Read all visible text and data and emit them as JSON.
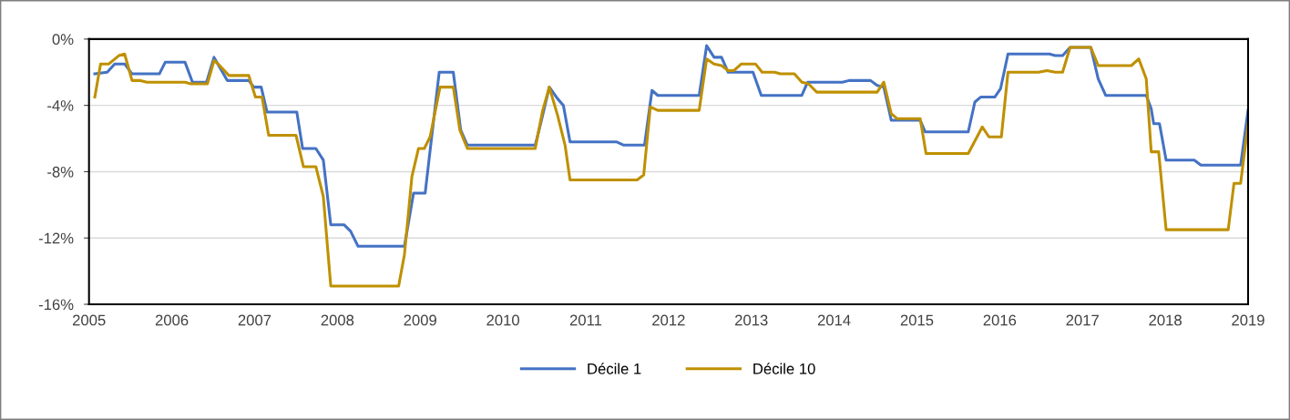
{
  "chart_data": {
    "type": "line",
    "xlim": [
      2005,
      2019
    ],
    "xticks": [
      2005,
      2006,
      2007,
      2008,
      2009,
      2010,
      2011,
      2012,
      2013,
      2014,
      2015,
      2016,
      2017,
      2018,
      2019
    ],
    "ylim": [
      -16,
      0
    ],
    "yticks": [
      {
        "value": -16,
        "label": "-16%"
      },
      {
        "value": -12,
        "label": "-12%"
      },
      {
        "value": -8,
        "label": "-8%"
      },
      {
        "value": -4,
        "label": "-4%"
      },
      {
        "value": 0,
        "label": "0%"
      }
    ],
    "grid": "y",
    "legend": "bottom",
    "marker": "none",
    "line_style": "solid",
    "series": [
      {
        "name": "Décile 1",
        "color": "#4472c4",
        "x": [
          2005.07,
          2005.22,
          2005.31,
          2005.43,
          2005.52,
          2005.85,
          2005.92,
          2006.16,
          2006.25,
          2006.42,
          2006.51,
          2006.67,
          2006.93,
          2006.99,
          2007.08,
          2007.15,
          2007.51,
          2007.58,
          2007.74,
          2007.83,
          2007.92,
          2008.08,
          2008.16,
          2008.25,
          2008.81,
          2008.92,
          2009.06,
          2009.23,
          2009.4,
          2009.49,
          2009.57,
          2010.39,
          2010.46,
          2010.56,
          2010.66,
          2010.73,
          2010.81,
          2011.37,
          2011.46,
          2011.71,
          2011.8,
          2011.87,
          2012.37,
          2012.46,
          2012.55,
          2012.64,
          2012.72,
          2013.02,
          2013.12,
          2013.61,
          2013.68,
          2014.1,
          2014.18,
          2014.44,
          2014.52,
          2014.6,
          2014.69,
          2015.04,
          2015.1,
          2015.62,
          2015.7,
          2015.77,
          2015.94,
          2016.01,
          2016.1,
          2016.6,
          2016.67,
          2016.76,
          2016.85,
          2017.1,
          2017.19,
          2017.28,
          2017.77,
          2017.83,
          2017.86,
          2017.93,
          2018.01,
          2018.35,
          2018.43,
          2018.91,
          2019.0
        ],
        "values": [
          -2.1,
          -2.0,
          -1.5,
          -1.5,
          -2.1,
          -2.1,
          -1.4,
          -1.4,
          -2.6,
          -2.6,
          -1.1,
          -2.5,
          -2.5,
          -2.9,
          -2.9,
          -4.4,
          -4.4,
          -6.6,
          -6.6,
          -7.3,
          -11.2,
          -11.2,
          -11.6,
          -12.5,
          -12.5,
          -9.3,
          -9.3,
          -2.0,
          -2.0,
          -5.5,
          -6.4,
          -6.4,
          -5.0,
          -2.9,
          -3.6,
          -4.0,
          -6.2,
          -6.2,
          -6.4,
          -6.4,
          -3.1,
          -3.4,
          -3.4,
          -0.4,
          -1.1,
          -1.1,
          -2.0,
          -2.0,
          -3.4,
          -3.4,
          -2.6,
          -2.6,
          -2.5,
          -2.5,
          -2.8,
          -2.9,
          -4.9,
          -4.9,
          -5.6,
          -5.6,
          -3.8,
          -3.5,
          -3.5,
          -3.0,
          -0.9,
          -0.9,
          -1.0,
          -1.0,
          -0.5,
          -0.5,
          -2.4,
          -3.4,
          -3.4,
          -4.2,
          -5.1,
          -5.1,
          -7.3,
          -7.3,
          -7.6,
          -7.6,
          -4.3
        ]
      },
      {
        "name": "Décile 10",
        "color": "#bf9000",
        "x": [
          2005.07,
          2005.14,
          2005.24,
          2005.36,
          2005.43,
          2005.52,
          2005.61,
          2005.7,
          2006.16,
          2006.23,
          2006.43,
          2006.51,
          2006.56,
          2006.69,
          2006.93,
          2007.01,
          2007.09,
          2007.17,
          2007.5,
          2007.59,
          2007.74,
          2007.83,
          2007.92,
          2008.74,
          2008.81,
          2008.9,
          2008.98,
          2009.05,
          2009.12,
          2009.24,
          2009.4,
          2009.48,
          2009.57,
          2010.39,
          2010.48,
          2010.56,
          2010.66,
          2010.75,
          2010.81,
          2011.62,
          2011.7,
          2011.78,
          2011.87,
          2012.37,
          2012.46,
          2012.55,
          2012.64,
          2012.72,
          2012.79,
          2012.88,
          2013.05,
          2013.13,
          2013.28,
          2013.35,
          2013.52,
          2013.61,
          2013.69,
          2013.79,
          2014.52,
          2014.6,
          2014.69,
          2014.76,
          2015.04,
          2015.11,
          2015.62,
          2015.79,
          2015.87,
          2016.02,
          2016.1,
          2016.47,
          2016.57,
          2016.67,
          2016.76,
          2016.85,
          2017.1,
          2017.19,
          2017.59,
          2017.68,
          2017.77,
          2017.83,
          2017.92,
          2018.01,
          2018.76,
          2018.83,
          2018.91,
          2019.0
        ],
        "values": [
          -3.5,
          -1.5,
          -1.5,
          -1.0,
          -0.9,
          -2.5,
          -2.5,
          -2.6,
          -2.6,
          -2.7,
          -2.7,
          -1.3,
          -1.5,
          -2.2,
          -2.2,
          -3.5,
          -3.5,
          -5.8,
          -5.8,
          -7.7,
          -7.7,
          -9.5,
          -14.9,
          -14.9,
          -13.0,
          -8.3,
          -6.6,
          -6.6,
          -5.9,
          -2.9,
          -2.9,
          -5.5,
          -6.6,
          -6.6,
          -4.3,
          -2.9,
          -4.6,
          -6.4,
          -8.5,
          -8.5,
          -8.2,
          -4.1,
          -4.3,
          -4.3,
          -1.2,
          -1.5,
          -1.6,
          -1.9,
          -1.9,
          -1.5,
          -1.5,
          -2.0,
          -2.0,
          -2.1,
          -2.1,
          -2.6,
          -2.7,
          -3.2,
          -3.2,
          -2.6,
          -4.5,
          -4.8,
          -4.8,
          -6.9,
          -6.9,
          -5.3,
          -5.9,
          -5.9,
          -2.0,
          -2.0,
          -1.9,
          -2.0,
          -2.0,
          -0.5,
          -0.5,
          -1.6,
          -1.6,
          -1.2,
          -2.4,
          -6.8,
          -6.8,
          -11.5,
          -11.5,
          -8.7,
          -8.7,
          -5.1
        ]
      }
    ]
  }
}
